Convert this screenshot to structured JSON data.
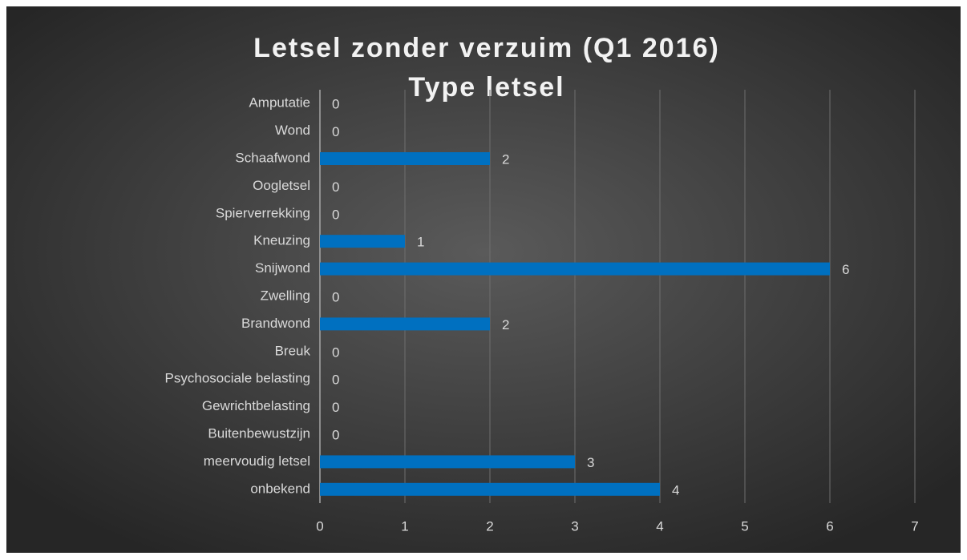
{
  "chart_data": {
    "type": "bar",
    "orientation": "horizontal",
    "title": "Letsel zonder verzuim (Q1 2016)",
    "subtitle": "Type letsel",
    "categories": [
      "Amputatie",
      "Wond",
      "Schaafwond",
      "Oogletsel",
      "Spierverrekking",
      "Kneuzing",
      "Snijwond",
      "Zwelling",
      "Brandwond",
      "Breuk",
      "Psychosociale belasting",
      "Gewrichtbelasting",
      "Buitenbewustzijn",
      "meervoudig letsel",
      "onbekend"
    ],
    "values": [
      0,
      0,
      2,
      0,
      0,
      1,
      6,
      0,
      2,
      0,
      0,
      0,
      0,
      3,
      4
    ],
    "color": "#0070c0",
    "xlim": [
      0,
      7
    ],
    "xticks": [
      0,
      1,
      2,
      3,
      4,
      5,
      6,
      7
    ],
    "grid": true
  }
}
